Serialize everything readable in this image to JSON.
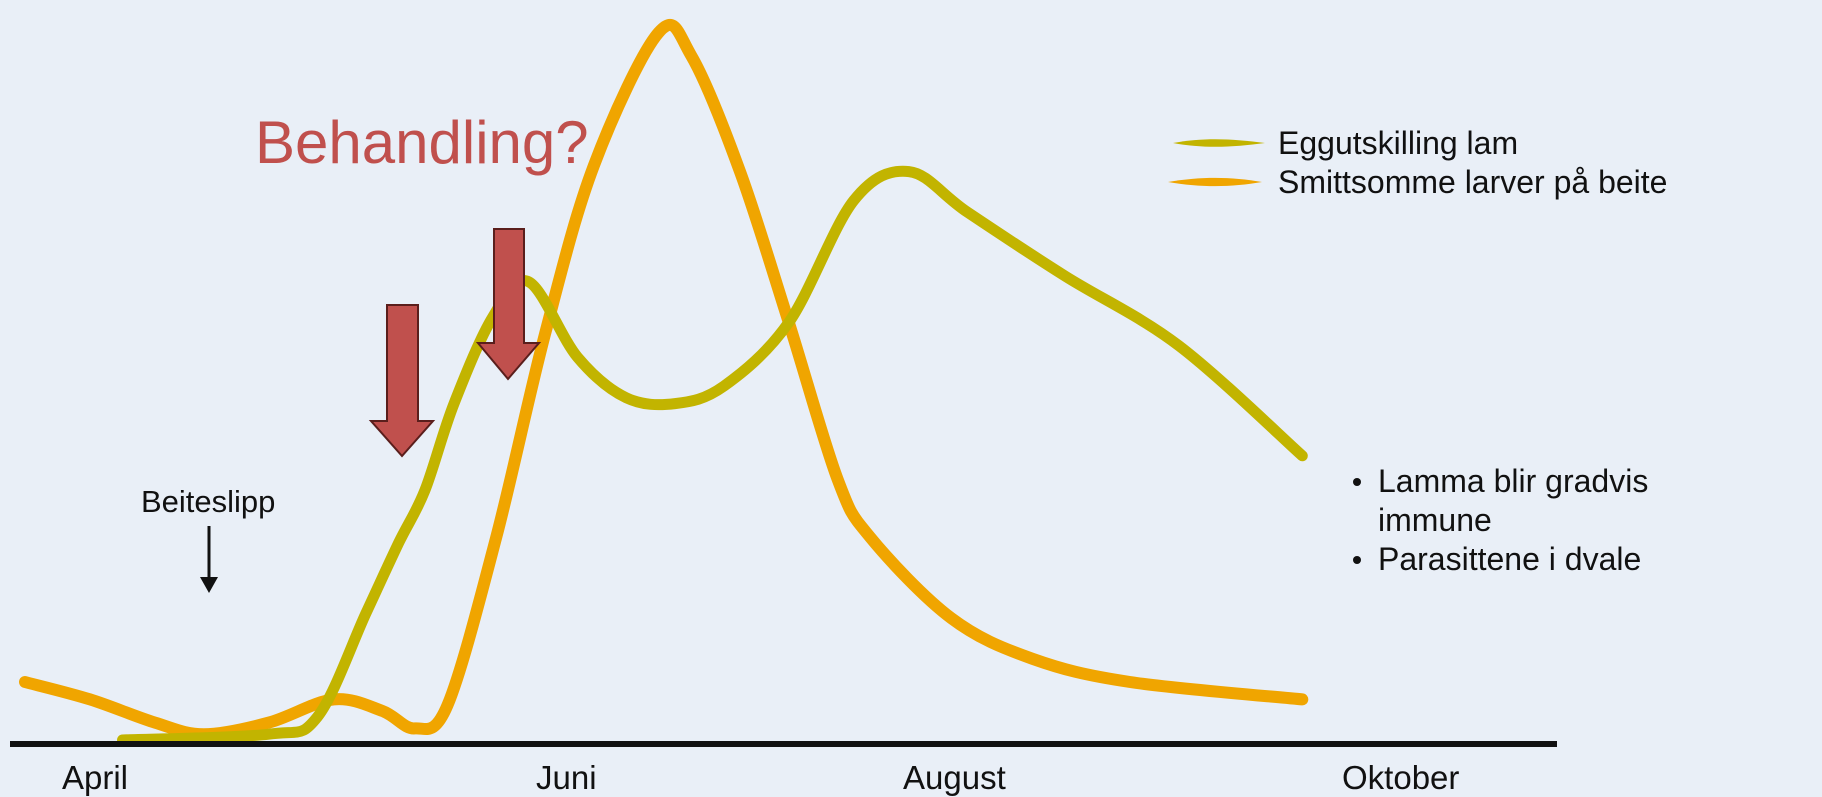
{
  "chart_data": {
    "type": "line",
    "title": "",
    "xlabel": "",
    "ylabel": "",
    "x_ticks": [
      "April",
      "Juni",
      "August",
      "Oktober"
    ],
    "grid": false,
    "legend_placement": "top-right",
    "series": [
      {
        "name": "Eggutskilling lam",
        "color": "#c2b400",
        "points": [
          [
            0.3,
            0
          ],
          [
            0.75,
            1
          ],
          [
            0.9,
            4
          ],
          [
            1.05,
            22
          ],
          [
            1.15,
            34
          ],
          [
            1.23,
            43
          ],
          [
            1.32,
            58
          ],
          [
            1.44,
            73
          ],
          [
            1.55,
            79
          ],
          [
            1.7,
            66
          ],
          [
            1.85,
            59
          ],
          [
            2.0,
            58
          ],
          [
            2.15,
            61
          ],
          [
            2.35,
            72
          ],
          [
            2.55,
            93
          ],
          [
            2.72,
            98
          ],
          [
            2.9,
            91
          ],
          [
            3.2,
            80
          ],
          [
            3.55,
            68
          ],
          [
            3.93,
            49
          ]
        ]
      },
      {
        "name": "Smittsomme larver på beite",
        "color": "#f0a500",
        "points": [
          [
            0.0,
            10
          ],
          [
            0.2,
            7
          ],
          [
            0.4,
            3
          ],
          [
            0.55,
            1
          ],
          [
            0.75,
            3
          ],
          [
            0.95,
            7
          ],
          [
            1.1,
            5
          ],
          [
            1.2,
            2
          ],
          [
            1.3,
            6
          ],
          [
            1.45,
            35
          ],
          [
            1.6,
            70
          ],
          [
            1.75,
            99
          ],
          [
            1.95,
            122
          ],
          [
            2.05,
            118
          ],
          [
            2.2,
            98
          ],
          [
            2.35,
            72
          ],
          [
            2.5,
            45
          ],
          [
            2.6,
            35
          ],
          [
            2.85,
            21
          ],
          [
            3.1,
            14
          ],
          [
            3.4,
            10
          ],
          [
            3.93,
            7
          ]
        ]
      }
    ],
    "annotations": {
      "callout": "Behandling?",
      "release_label": "Beiteslipp",
      "notes": [
        "Lamma blir gradvis immune",
        "Parasittene i dvale"
      ]
    }
  }
}
